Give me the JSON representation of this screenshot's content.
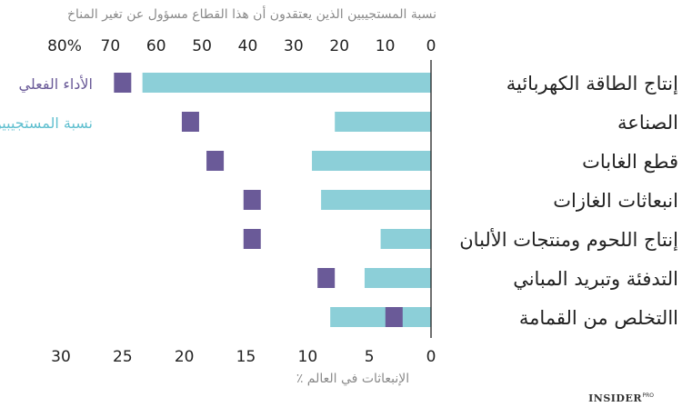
{
  "chart_data": {
    "type": "bar",
    "top_axis_title": "نسبة المستجيبين الذين يعتقدون أن هذا القطاع مسؤول عن تغير المناخ",
    "bottom_axis_title": "٪ الإنبعاثات في العالم",
    "top_ticks": [
      "80%",
      "70",
      "60",
      "50",
      "40",
      "30",
      "20",
      "10",
      "0"
    ],
    "bottom_ticks": [
      "30",
      "25",
      "20",
      "15",
      "10",
      "5",
      "0"
    ],
    "top_range": [
      0,
      80
    ],
    "bottom_range": [
      0,
      30
    ],
    "categories": [
      "إنتاج الطاقة الكهربائية",
      "الصناعة",
      "قطع الغابات",
      "انبعاثات الغازات",
      "إنتاج اللحوم ومنتجات الألبان",
      "التدفئة وتبريد المباني",
      "االتخلص من القمامة"
    ],
    "series": [
      {
        "name": "نسبة المستجيبين",
        "axis": "top",
        "color": "#8ccfd8",
        "values": [
          63,
          21,
          26,
          24,
          11,
          14.5,
          22
        ]
      },
      {
        "name": "الأداء الفعلي",
        "axis": "bottom",
        "color": "#6a5a98",
        "values": [
          25,
          19.5,
          17.5,
          14.5,
          14.5,
          8.5,
          3
        ]
      }
    ],
    "legend": [
      {
        "text": "الأداء الفعلي",
        "color": "#6a5a98"
      },
      {
        "text": "نسبة المستجيبين",
        "color": "#5fbfcf"
      }
    ],
    "grid": false
  },
  "brand": {
    "name": "INSIDER",
    "sub": "PRO"
  },
  "colors": {
    "bar": "#8ccfd8",
    "marker": "#6a5a98",
    "axis": "#222222",
    "title": "#8a8a8a"
  }
}
